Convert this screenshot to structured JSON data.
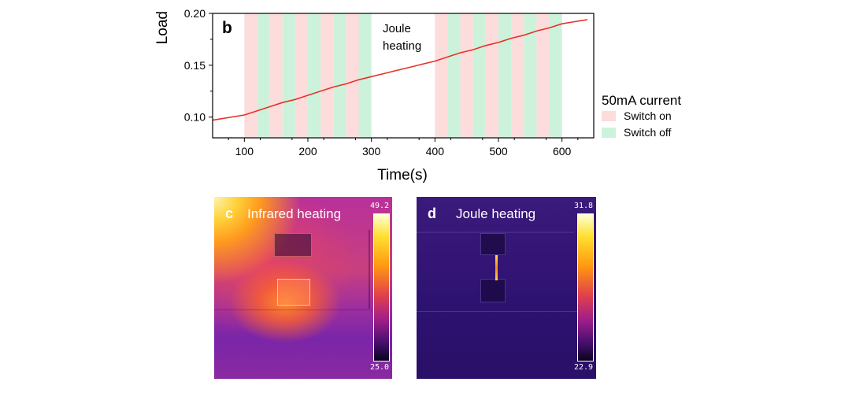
{
  "chart_data": {
    "type": "line",
    "panel_label": "b",
    "xlabel": "Time(s)",
    "ylabel": "Load",
    "xlim": [
      50,
      650
    ],
    "ylim": [
      0.08,
      0.2
    ],
    "x_ticks": [
      100,
      200,
      300,
      400,
      500,
      600
    ],
    "y_ticks": [
      0.1,
      0.15,
      0.2
    ],
    "x_tick_labels": [
      "100",
      "200",
      "300",
      "400",
      "500",
      "600"
    ],
    "y_tick_labels": [
      "0.10",
      "0.15",
      "0.20"
    ],
    "annotation": [
      "Joule",
      "heating"
    ],
    "line_color": "#e8302a",
    "series": [
      {
        "name": "Load",
        "x": [
          50,
          100,
          120,
          140,
          160,
          180,
          200,
          220,
          240,
          260,
          280,
          300,
          320,
          340,
          360,
          380,
          400,
          420,
          440,
          460,
          480,
          500,
          520,
          540,
          560,
          580,
          600,
          620,
          640
        ],
        "y": [
          0.097,
          0.102,
          0.106,
          0.11,
          0.114,
          0.117,
          0.121,
          0.125,
          0.129,
          0.132,
          0.136,
          0.139,
          0.142,
          0.145,
          0.148,
          0.151,
          0.154,
          0.158,
          0.162,
          0.165,
          0.169,
          0.172,
          0.176,
          0.179,
          0.183,
          0.186,
          0.19,
          0.192,
          0.194
        ]
      }
    ],
    "intervals": [
      {
        "state": "on",
        "start": 100,
        "end": 120
      },
      {
        "state": "off",
        "start": 120,
        "end": 140
      },
      {
        "state": "on",
        "start": 140,
        "end": 160
      },
      {
        "state": "off",
        "start": 160,
        "end": 180
      },
      {
        "state": "on",
        "start": 180,
        "end": 200
      },
      {
        "state": "off",
        "start": 200,
        "end": 220
      },
      {
        "state": "on",
        "start": 220,
        "end": 240
      },
      {
        "state": "off",
        "start": 240,
        "end": 260
      },
      {
        "state": "on",
        "start": 260,
        "end": 280
      },
      {
        "state": "off",
        "start": 280,
        "end": 300
      },
      {
        "state": "on",
        "start": 400,
        "end": 420
      },
      {
        "state": "off",
        "start": 420,
        "end": 440
      },
      {
        "state": "on",
        "start": 440,
        "end": 460
      },
      {
        "state": "off",
        "start": 460,
        "end": 480
      },
      {
        "state": "on",
        "start": 480,
        "end": 500
      },
      {
        "state": "off",
        "start": 500,
        "end": 520
      },
      {
        "state": "on",
        "start": 520,
        "end": 540
      },
      {
        "state": "off",
        "start": 540,
        "end": 560
      },
      {
        "state": "on",
        "start": 560,
        "end": 580
      },
      {
        "state": "off",
        "start": 580,
        "end": 600
      }
    ],
    "legend": {
      "title": "50mA current",
      "placement": "right",
      "entries": [
        {
          "label": "Switch on",
          "color": "#fddcdc"
        },
        {
          "label": "Switch off",
          "color": "#cdf2dc"
        }
      ]
    }
  },
  "images": {
    "c": {
      "label": "c",
      "title": "Infrared heating",
      "scale_max": "49.2",
      "scale_min": "25.0"
    },
    "d": {
      "label": "d",
      "title": "Joule heating",
      "scale_max": "31.8",
      "scale_min": "22.9"
    }
  }
}
